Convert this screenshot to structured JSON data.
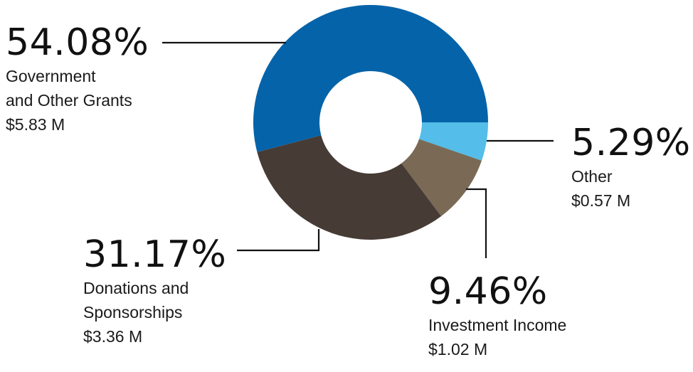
{
  "chart_data": {
    "type": "pie",
    "donut": true,
    "slices": [
      {
        "percent_label": "54.08%",
        "value": 54.08,
        "lines": [
          "Government",
          "and Other Grants",
          "$5.83 M"
        ],
        "color": "#0563a9"
      },
      {
        "percent_label": "5.29%",
        "value": 5.29,
        "lines": [
          "Other",
          "$0.57 M"
        ],
        "color": "#54bde9"
      },
      {
        "percent_label": "9.46%",
        "value": 9.46,
        "lines": [
          "Investment Income",
          "$1.02 M"
        ],
        "color": "#7a6a55"
      },
      {
        "percent_label": "31.17%",
        "value": 31.17,
        "lines": [
          "Donations and",
          "Sponsorships",
          "$3.36 M"
        ],
        "color": "#463b35"
      }
    ]
  }
}
